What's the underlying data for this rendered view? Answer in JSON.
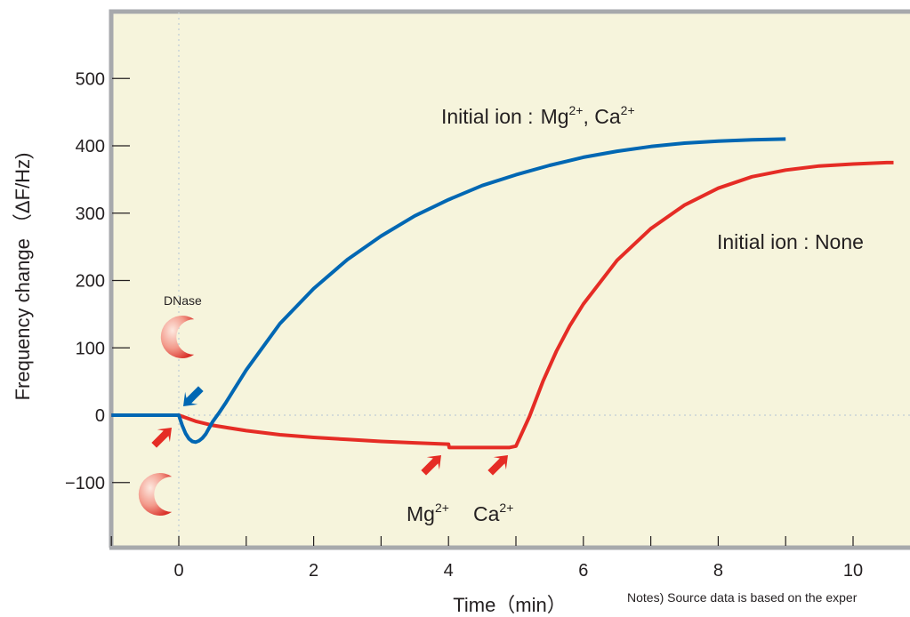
{
  "chart_data": {
    "type": "line",
    "xlabel": "Time（min）",
    "ylabel": "Frequency change （ΔF/Hz)",
    "xlim": [
      -1.0,
      10.9
    ],
    "ylim": [
      -185,
      605
    ],
    "xticks": [
      0,
      2,
      4,
      6,
      8,
      10
    ],
    "yticks": [
      -100,
      0,
      100,
      200,
      300,
      400,
      500
    ],
    "ytick_labels": [
      "−100",
      "0",
      "100",
      "200",
      "300",
      "400",
      "500"
    ],
    "grid": false,
    "background": "#f6f4dc",
    "frame_color": "#a7a9ac",
    "series": [
      {
        "name": "Initial ion : Mg2+, Ca2+",
        "color": "#0067b3",
        "x": [
          -1.0,
          -0.5,
          0.0,
          0.05,
          0.1,
          0.15,
          0.2,
          0.25,
          0.3,
          0.35,
          0.4,
          0.45,
          0.5,
          0.6,
          0.7,
          0.8,
          1.0,
          1.5,
          2.0,
          2.5,
          3.0,
          3.5,
          4.0,
          4.5,
          5.0,
          5.5,
          6.0,
          6.5,
          7.0,
          7.5,
          8.0,
          8.5,
          9.0
        ],
        "y": [
          0,
          0,
          0,
          -15,
          -27,
          -35,
          -39,
          -40,
          -38,
          -34,
          -28,
          -19,
          -10,
          4,
          19,
          35,
          67,
          136,
          188,
          231,
          266,
          296,
          320,
          341,
          357,
          371,
          383,
          392,
          399,
          404,
          407,
          409,
          410
        ]
      },
      {
        "name": "Initial ion : None",
        "color": "#e52c25",
        "x": [
          -1.0,
          -0.5,
          0.0,
          0.25,
          0.5,
          1.0,
          1.5,
          2.0,
          2.5,
          3.0,
          3.5,
          4.0,
          4.01,
          4.5,
          4.9,
          5.0,
          5.2,
          5.4,
          5.6,
          5.8,
          6.0,
          6.5,
          7.0,
          7.5,
          8.0,
          8.5,
          9.0,
          9.5,
          10.0,
          10.5,
          10.6
        ],
        "y": [
          0,
          0,
          0,
          -9,
          -15,
          -23,
          -29,
          -33,
          -36,
          -39,
          -41,
          -43,
          -48,
          -48,
          -48,
          -46,
          -2,
          50,
          95,
          133,
          165,
          230,
          277,
          312,
          337,
          354,
          364,
          370,
          373,
          375,
          375
        ]
      }
    ],
    "annotations": {
      "initial_ion_mg_ca": "Initial ion :",
      "mg_ca_chem": "Mg",
      "mg_sup": "2+",
      "ca_chem": ", Ca",
      "ca_sup": "2+",
      "initial_ion_none": "Initial ion : None",
      "dnase": "DNase",
      "mg_marker": "Mg",
      "mg_marker_sup": "2+",
      "ca_marker": "Ca",
      "ca_marker_sup": "2+",
      "note": "Notes) Source data is based on the exper"
    },
    "annotation_colors": {
      "red_arrow": "#e52c25",
      "blue_arrow": "#0067b3",
      "enzyme_light": "#fde1d6",
      "enzyme_dark": "#e0473c"
    }
  }
}
